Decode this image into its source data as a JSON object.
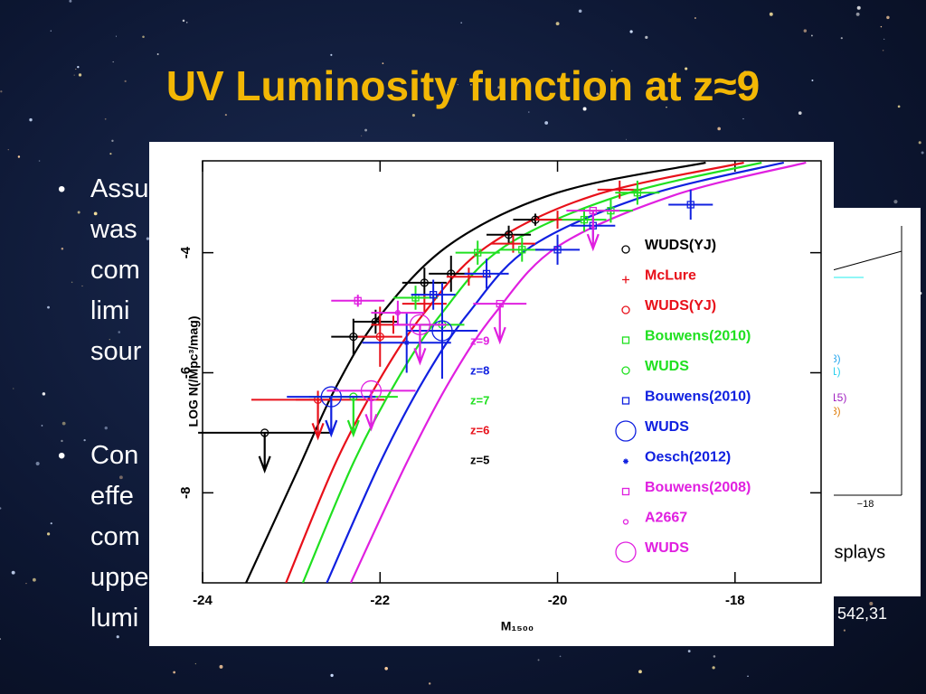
{
  "slide": {
    "title": "UV Luminosity function at z≈9",
    "bullets": [
      [
        "Assu",
        "was",
        "com",
        "limi",
        "sour"
      ],
      [
        "Con",
        "effe",
        "com",
        "uppe",
        "lumi"
      ]
    ],
    "footnote": "542,31",
    "background_figure": {
      "labels": [
        "8)",
        "1)",
        "15)",
        "8)"
      ],
      "tick": "−18",
      "caption": "isplays"
    }
  },
  "chart_data": {
    "type": "scatter",
    "x_label": "M₁₅₀₀",
    "y_label": "LOG N(/Mpc³/mag)",
    "xlim": [
      -24,
      -17.03
    ],
    "ylim": [
      -9.5,
      -2.47
    ],
    "xticks": [
      -24,
      -22,
      -20,
      -18
    ],
    "yticks": [
      -8,
      -6,
      -4
    ],
    "curves": [
      {
        "name": "z=5",
        "color": "#000000",
        "x": [
          -23.51,
          -22.92,
          -22.5,
          -22,
          -21.2,
          -20,
          -18.33
        ],
        "y": [
          -9.5,
          -7.6,
          -6.25,
          -5.05,
          -3.85,
          -3.0,
          -2.5
        ]
      },
      {
        "name": "z=6",
        "color": "#e8101a",
        "x": [
          -23.06,
          -22.5,
          -22.0,
          -21.5,
          -20.8,
          -19.6,
          -17.9
        ],
        "y": [
          -9.5,
          -7.5,
          -6.1,
          -5.0,
          -3.9,
          -3.05,
          -2.5
        ]
      },
      {
        "name": "z=7",
        "color": "#20e020",
        "x": [
          -22.87,
          -22.3,
          -21.8,
          -21.3,
          -20.6,
          -19.3,
          -17.7
        ],
        "y": [
          -9.5,
          -7.5,
          -6.1,
          -5.0,
          -3.9,
          -3.05,
          -2.5
        ]
      },
      {
        "name": "z=8",
        "color": "#1020e0",
        "x": [
          -22.6,
          -22.0,
          -21.5,
          -21.0,
          -20.3,
          -19.0,
          -17.45
        ],
        "y": [
          -9.5,
          -7.5,
          -6.1,
          -5.0,
          -3.9,
          -3.05,
          -2.5
        ]
      },
      {
        "name": "z=9",
        "color": "#e020e0",
        "x": [
          -22.33,
          -21.7,
          -21.2,
          -20.7,
          -20.0,
          -18.7,
          -17.2
        ],
        "y": [
          -9.5,
          -7.5,
          -6.1,
          -5.0,
          -3.9,
          -3.05,
          -2.5
        ]
      }
    ],
    "series": [
      {
        "name": "WUDS(YJ)",
        "color": "#000000",
        "marker": "circle",
        "x": [
          -23.3,
          -22.3,
          -22.05,
          -21.5,
          -21.2,
          -20.55,
          -20.25
        ],
        "y": [
          -7.0,
          -5.4,
          -5.15,
          -4.5,
          -4.35,
          -3.7,
          -3.45
        ],
        "xerr": [
          0.75,
          0.25,
          0.25,
          0.25,
          0.25,
          0.25,
          0.25
        ],
        "yerr": [
          0,
          0.3,
          0.2,
          0.25,
          0.3,
          0.15,
          0.1
        ],
        "upper_limit": [
          true,
          false,
          false,
          false,
          false,
          false,
          false
        ]
      },
      {
        "name": "McLure",
        "color": "#e8101a",
        "marker": "plus",
        "x": [
          -22.7,
          -21.85,
          -21.5,
          -21.0,
          -20.5,
          -20.0,
          -19.3
        ],
        "y": [
          -6.45,
          -5.2,
          -4.85,
          -4.4,
          -3.85,
          -3.45,
          -2.95
        ],
        "xerr": [
          0.25,
          0.25,
          0.25,
          0.25,
          0.25,
          0.25,
          0.25
        ],
        "yerr": [
          0.15,
          0.15,
          0.15,
          0.15,
          0.15,
          0.15,
          0.15
        ],
        "upper_limit": [
          false,
          false,
          false,
          false,
          false,
          false,
          false
        ]
      },
      {
        "name": "WUDS(YJ)",
        "color": "#e8101a",
        "marker": "circledot",
        "x": [
          -22.7,
          -22.0
        ],
        "y": [
          -6.45,
          -5.4
        ],
        "xerr": [
          0.75,
          0.25
        ],
        "yerr": [
          0,
          0.5
        ],
        "upper_limit": [
          true,
          false
        ]
      },
      {
        "name": "Bouwens(2010)",
        "color": "#20e020",
        "marker": "square",
        "x": [
          -21.6,
          -20.9,
          -20.4,
          -19.7,
          -19.4,
          -19.1
        ],
        "y": [
          -4.75,
          -4.0,
          -3.95,
          -3.45,
          -3.3,
          -3.0
        ],
        "xerr": [
          0.25,
          0.25,
          0.25,
          0.25,
          0.25,
          0.25
        ],
        "yerr": [
          0.2,
          0.2,
          0.2,
          0.2,
          0.2,
          0.2
        ],
        "upper_limit": [
          false,
          false,
          false,
          false,
          false,
          false
        ]
      },
      {
        "name": "WUDS",
        "color": "#20e020",
        "marker": "circle",
        "x": [
          -22.3,
          -21.3
        ],
        "y": [
          -6.4,
          -5.2
        ],
        "xerr": [
          0.5,
          0.25
        ],
        "yerr": [
          0,
          0.3
        ],
        "upper_limit": [
          true,
          false
        ]
      },
      {
        "name": "Bouwens(2010)",
        "color": "#1020e0",
        "marker": "square",
        "x": [
          -21.4,
          -20.8,
          -20.0,
          -19.6,
          -18.5
        ],
        "y": [
          -4.7,
          -4.35,
          -3.95,
          -3.55,
          -3.2
        ],
        "xerr": [
          0.25,
          0.25,
          0.25,
          0.25,
          0.25
        ],
        "yerr": [
          0.25,
          0.25,
          0.25,
          0.25,
          0.25
        ],
        "upper_limit": [
          false,
          false,
          false,
          false,
          false
        ]
      },
      {
        "name": "WUDS",
        "color": "#1020e0",
        "marker": "bigcircle",
        "x": [
          -22.55,
          -21.3
        ],
        "y": [
          -6.4,
          -5.3
        ],
        "xerr": [
          0.5,
          0.4
        ],
        "yerr": [
          0,
          0.8
        ],
        "upper_limit": [
          true,
          false
        ]
      },
      {
        "name": "Oesch(2012)",
        "color": "#1020e0",
        "marker": "asterisk",
        "x": [
          -21.7
        ],
        "y": [
          -5.5
        ],
        "xerr": [
          0.5
        ],
        "yerr": [
          0.5
        ],
        "upper_limit": [
          false
        ]
      },
      {
        "name": "Bouwens(2008)",
        "color": "#e020e0",
        "marker": "square",
        "x": [
          -22.25,
          -20.65,
          -19.6
        ],
        "y": [
          -4.8,
          -4.85,
          -3.3
        ],
        "xerr": [
          0.3,
          0.3,
          0.3
        ],
        "yerr": [
          0.1,
          0,
          0
        ],
        "upper_limit": [
          false,
          true,
          true
        ]
      },
      {
        "name": "A2667",
        "color": "#e020e0",
        "marker": "smallcircle",
        "x": [
          -21.8
        ],
        "y": [
          -5.0
        ],
        "xerr": [
          0.3
        ],
        "yerr": [
          0.2
        ],
        "upper_limit": [
          false
        ]
      },
      {
        "name": "WUDS",
        "color": "#e020e0",
        "marker": "bigcircle",
        "x": [
          -22.1,
          -21.55
        ],
        "y": [
          -6.3,
          -5.2
        ],
        "xerr": [
          0.5,
          0.3
        ],
        "yerr": [
          0,
          0
        ],
        "upper_limit": [
          true,
          true
        ]
      }
    ]
  }
}
